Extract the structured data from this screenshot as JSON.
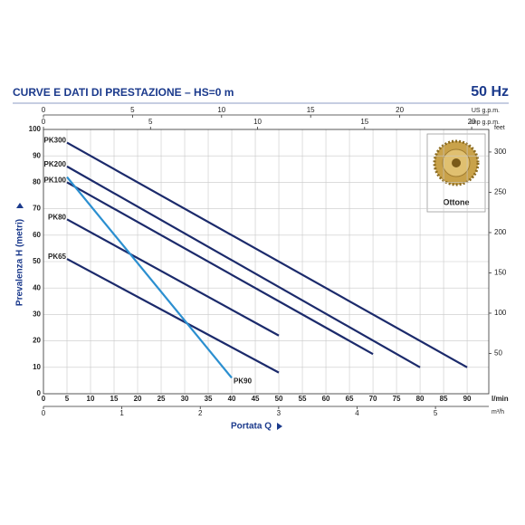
{
  "chart_data": {
    "type": "line",
    "title": "CURVE E DATI DI PRESTAZIONE  –  HS=0 m",
    "frequency": "50 Hz",
    "y_label": "Prevalenza H (metri)",
    "x_label": "Portata Q",
    "x_unit": "l/min",
    "xlim": [
      0,
      94.6
    ],
    "xticks": [
      0,
      5,
      10,
      15,
      20,
      25,
      30,
      35,
      40,
      45,
      50,
      55,
      60,
      65,
      70,
      75,
      80,
      85,
      90
    ],
    "ylim": [
      0,
      100
    ],
    "yticks": [
      0,
      10,
      20,
      30,
      40,
      50,
      60,
      70,
      80,
      90,
      100
    ],
    "x2_unit": "US g.p.m.",
    "x2lim": [
      0,
      25
    ],
    "x2ticks": [
      0,
      5,
      10,
      15,
      20
    ],
    "x3_unit": "Imp g.p.m.",
    "x3lim": [
      0,
      20.8
    ],
    "x3ticks": [
      0,
      5,
      10,
      15,
      20
    ],
    "x4_unit": "m³/h",
    "x4lim": [
      0,
      5.68
    ],
    "x4ticks": [
      0,
      1,
      2,
      3,
      4,
      5
    ],
    "y2_unit": "feet",
    "y2lim": [
      0,
      328
    ],
    "y2ticks": [
      50,
      100,
      150,
      200,
      250,
      300
    ],
    "grid": true,
    "badge_label": "Ottone",
    "series": [
      {
        "name": "PK300",
        "color": "#1b2a6b",
        "x": [
          5,
          90
        ],
        "values": [
          95,
          10
        ],
        "label_at": "start"
      },
      {
        "name": "PK200",
        "color": "#1b2a6b",
        "x": [
          5,
          80
        ],
        "values": [
          86,
          10
        ],
        "label_at": "start"
      },
      {
        "name": "PK100",
        "color": "#1b2a6b",
        "x": [
          5,
          70
        ],
        "values": [
          80,
          15
        ],
        "label_at": "start"
      },
      {
        "name": "PK80",
        "color": "#1b2a6b",
        "x": [
          5,
          50
        ],
        "values": [
          66,
          22
        ],
        "label_at": "start"
      },
      {
        "name": "PK65",
        "color": "#1b2a6b",
        "x": [
          5,
          50
        ],
        "values": [
          51,
          8
        ],
        "label_at": "start"
      },
      {
        "name": "PK90",
        "color": "#2b8fd0",
        "x": [
          5,
          40
        ],
        "values": [
          82,
          6
        ],
        "label_at": "end"
      }
    ]
  }
}
